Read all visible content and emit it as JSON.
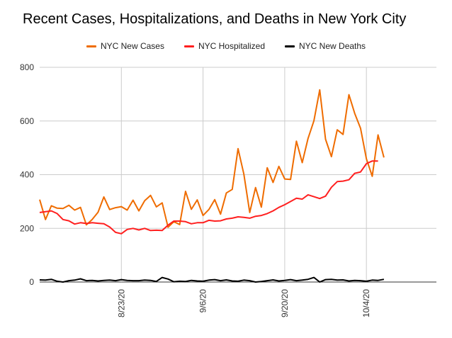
{
  "chart_data": {
    "type": "line",
    "title": "Recent Cases, Hospitalizations, and Deaths in New York City",
    "xlabel": "",
    "ylabel": "",
    "ylim": [
      0,
      800
    ],
    "yticks": [
      "0",
      "200",
      "400",
      "600",
      "800"
    ],
    "x_start": "8/9/20",
    "x_end": "10/16/20",
    "xtick_labels": [
      "8/23/20",
      "9/6/20",
      "9/20/20",
      "10/4/20"
    ],
    "grid": "vertical gridlines at labeled dates, horizontal gridlines at y ticks",
    "legend_position": "top",
    "series": [
      {
        "name": "NYC New Cases",
        "color": "#ef6c00",
        "values": [
          307,
          233,
          284,
          275,
          274,
          286,
          268,
          278,
          213,
          233,
          260,
          317,
          270,
          277,
          281,
          268,
          305,
          265,
          303,
          323,
          280,
          295,
          204,
          225,
          214,
          338,
          271,
          306,
          248,
          270,
          307,
          253,
          332,
          345,
          497,
          402,
          259,
          352,
          279,
          426,
          371,
          431,
          384,
          382,
          525,
          445,
          535,
          601,
          716,
          532,
          467,
          567,
          550,
          698,
          628,
          573,
          459,
          394,
          548,
          464
        ]
      },
      {
        "name": "NYC Hospitalized",
        "color": "#ff1f1f",
        "values": [
          259,
          262,
          265,
          255,
          233,
          228,
          216,
          221,
          218,
          221,
          219,
          217,
          205,
          185,
          180,
          196,
          200,
          194,
          200,
          192,
          193,
          192,
          212,
          227,
          227,
          225,
          217,
          221,
          221,
          230,
          227,
          228,
          235,
          238,
          243,
          241,
          238,
          245,
          248,
          255,
          265,
          278,
          288,
          300,
          312,
          309,
          325,
          318,
          311,
          320,
          353,
          374,
          376,
          381,
          405,
          410,
          441,
          451,
          451
        ]
      },
      {
        "name": "NYC New Deaths",
        "color": "#000000",
        "values": [
          8,
          7,
          10,
          3,
          0,
          5,
          7,
          12,
          5,
          6,
          4,
          6,
          7,
          5,
          9,
          6,
          5,
          5,
          7,
          6,
          2,
          17,
          11,
          1,
          3,
          2,
          6,
          4,
          3,
          7,
          9,
          5,
          8,
          4,
          3,
          7,
          5,
          0,
          2,
          5,
          8,
          4,
          6,
          9,
          5,
          7,
          10,
          17,
          0,
          9,
          10,
          7,
          8,
          4,
          6,
          5,
          3,
          7,
          6,
          10
        ]
      }
    ]
  }
}
